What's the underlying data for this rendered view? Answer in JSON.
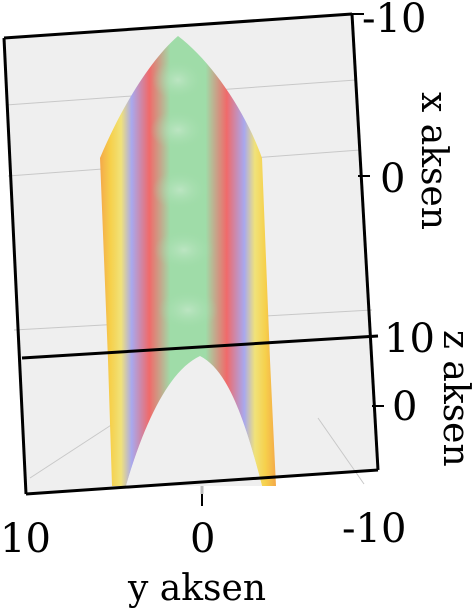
{
  "chart_data": {
    "type": "surface3d",
    "title": "",
    "function": "x = -(y^2)",
    "x_axis": {
      "label": "x aksen",
      "ticks": [
        "-10",
        "0"
      ],
      "range": [
        -10,
        10
      ]
    },
    "y_axis": {
      "label": "y aksen",
      "ticks": [
        "10",
        "0",
        "-10"
      ],
      "range": [
        -10,
        10
      ]
    },
    "z_axis": {
      "label": "z aksen",
      "ticks": [
        "10",
        "0"
      ],
      "range": [
        -10,
        10
      ]
    },
    "grid": true,
    "legend": "none",
    "colormap": [
      "#f6c23b",
      "#f4a94a",
      "#f0e27a",
      "#a8a8ee",
      "#f06a6a",
      "#9fdca8"
    ],
    "background_color": "#efefef",
    "surface_highlight_color": "#a6d8ae"
  }
}
